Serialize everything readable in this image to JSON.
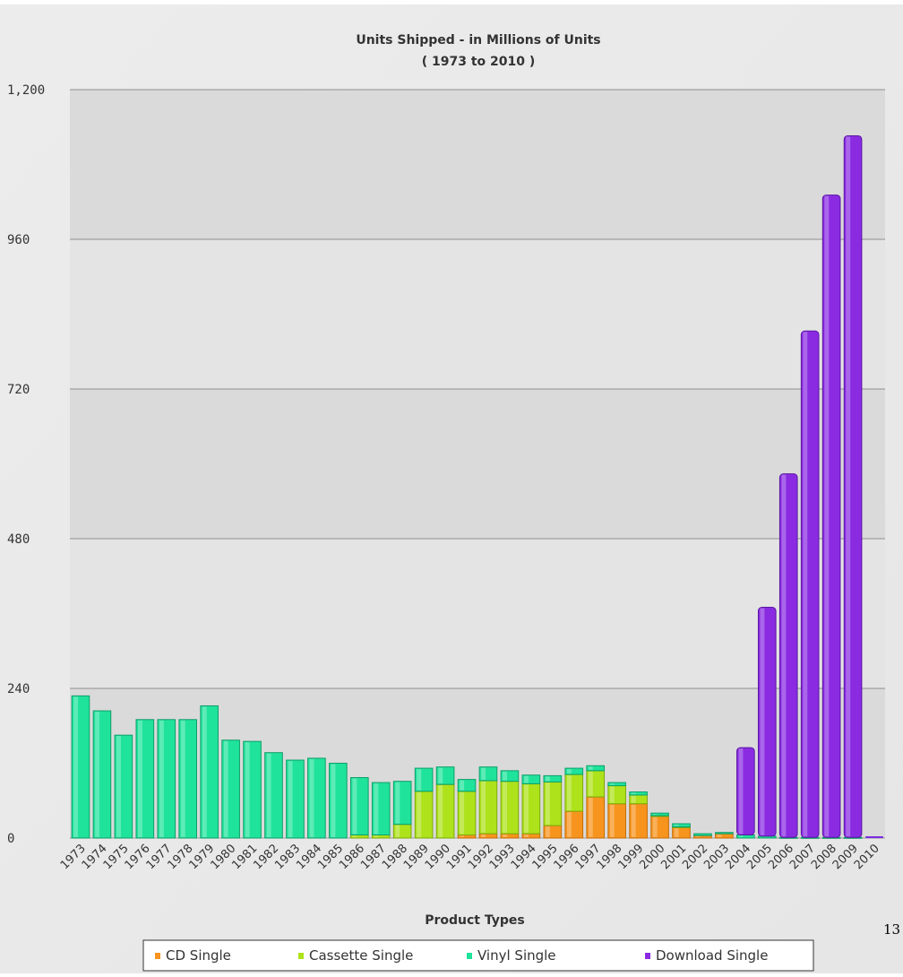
{
  "chart_data": {
    "type": "bar",
    "stacked": true,
    "title": "Units Shipped - in Millions of Units",
    "subtitle": "( 1973 to 2010 )",
    "xlabel": "Product Types",
    "ylabel": "",
    "ylim": [
      0,
      1200
    ],
    "yticks": [
      0,
      240,
      480,
      720,
      960,
      1200
    ],
    "ytick_labels": [
      "0",
      "240",
      "480",
      "720",
      "960",
      "1,200"
    ],
    "grid": true,
    "legend_position": "bottom",
    "categories": [
      "1973",
      "1974",
      "1975",
      "1976",
      "1977",
      "1978",
      "1979",
      "1980",
      "1981",
      "1982",
      "1983",
      "1984",
      "1985",
      "1986",
      "1987",
      "1988",
      "1989",
      "1990",
      "1991",
      "1992",
      "1993",
      "1994",
      "1995",
      "1996",
      "1997",
      "1998",
      "1999",
      "2000",
      "2001",
      "2002",
      "2003",
      "2004",
      "2005",
      "2006",
      "2007",
      "2008",
      "2009",
      "2010"
    ],
    "series": [
      {
        "name": "CD Single",
        "color": "#f7941d",
        "values": [
          0,
          0,
          0,
          0,
          0,
          0,
          0,
          0,
          0,
          0,
          0,
          0,
          0,
          0,
          0,
          0,
          0,
          0,
          5,
          7,
          7,
          7,
          20,
          43,
          66,
          55,
          55,
          35,
          17,
          4,
          7,
          0,
          0,
          0,
          0,
          0,
          0,
          0
        ]
      },
      {
        "name": "Cassette Single",
        "color": "#aee21a",
        "values": [
          0,
          0,
          0,
          0,
          0,
          0,
          0,
          0,
          0,
          0,
          0,
          0,
          0,
          5,
          5,
          22,
          75,
          86,
          70,
          85,
          84,
          80,
          70,
          59,
          42,
          29,
          14,
          1,
          1,
          0,
          0,
          0,
          0,
          0,
          0,
          0,
          0,
          0
        ]
      },
      {
        "name": "Vinyl Single",
        "color": "#1fe39b",
        "values": [
          228,
          204,
          165,
          190,
          190,
          190,
          212,
          157,
          155,
          137,
          125,
          128,
          120,
          92,
          84,
          69,
          37,
          28,
          19,
          22,
          17,
          14,
          10,
          10,
          8,
          5,
          5,
          4,
          5,
          3,
          2,
          5,
          3,
          1,
          1,
          1,
          1,
          0
        ]
      },
      {
        "name": "Download Single",
        "color": "#8a2be2",
        "values": [
          0,
          0,
          0,
          0,
          0,
          0,
          0,
          0,
          0,
          0,
          0,
          0,
          0,
          0,
          0,
          0,
          0,
          0,
          0,
          0,
          0,
          0,
          0,
          0,
          0,
          0,
          0,
          0,
          0,
          0,
          0,
          140,
          367,
          583,
          812,
          1030,
          1125,
          0
        ]
      }
    ]
  },
  "page": {
    "side_number": "13"
  }
}
